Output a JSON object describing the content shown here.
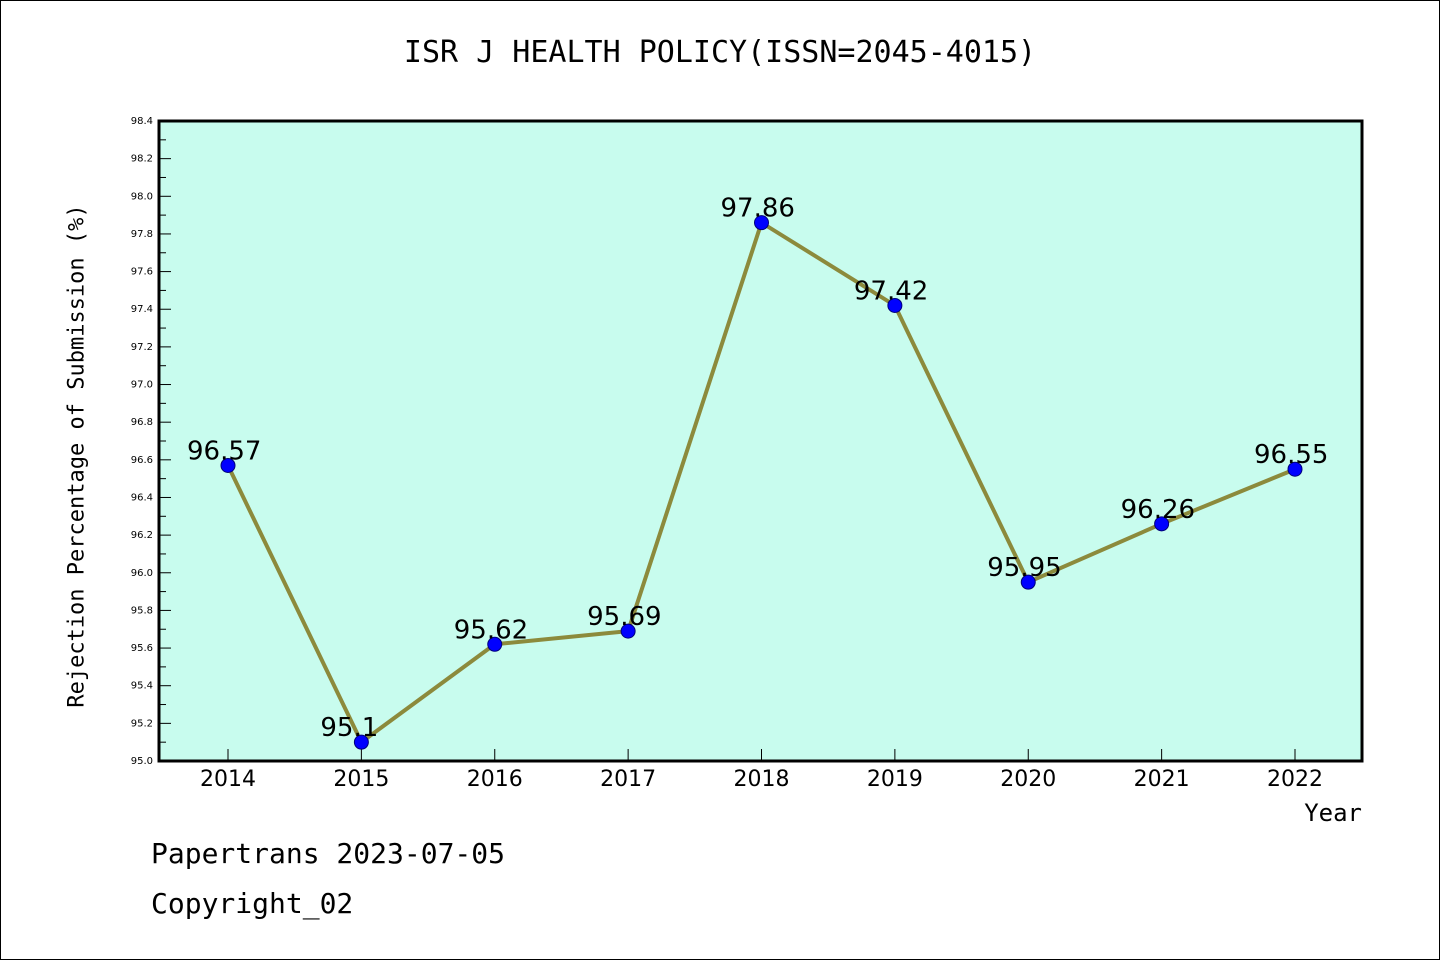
{
  "chart_data": {
    "type": "line",
    "title": "ISR J HEALTH POLICY(ISSN=2045-4015)",
    "xlabel": "Year",
    "ylabel": "Rejection Percentage of Submission (%)",
    "x": [
      "2014",
      "2015",
      "2016",
      "2017",
      "2018",
      "2019",
      "2020",
      "2021",
      "2022"
    ],
    "series": [
      {
        "values": [
          96.57,
          95.1,
          95.62,
          95.69,
          97.86,
          97.42,
          95.95,
          96.26,
          96.55
        ],
        "labels": [
          "96.57",
          "95.1",
          "95.62",
          "95.69",
          "97.86",
          "97.42",
          "95.95",
          "96.26",
          "96.55"
        ]
      }
    ],
    "ylim": [
      95.0,
      98.4
    ],
    "yticks": [
      "95.0",
      "95.2",
      "95.4",
      "95.6",
      "95.8",
      "96.0",
      "96.2",
      "96.4",
      "96.6",
      "96.8",
      "97.0",
      "97.2",
      "97.4",
      "97.6",
      "97.8",
      "98.0",
      "98.2",
      "98.4"
    ],
    "grid": false,
    "colors": {
      "plot_background": "#c8fcee",
      "line": "#8c8a3c",
      "marker": "#0000ff"
    }
  },
  "footer": {
    "date": "Papertrans 2023-07-05",
    "copyright": "Copyright_02"
  }
}
